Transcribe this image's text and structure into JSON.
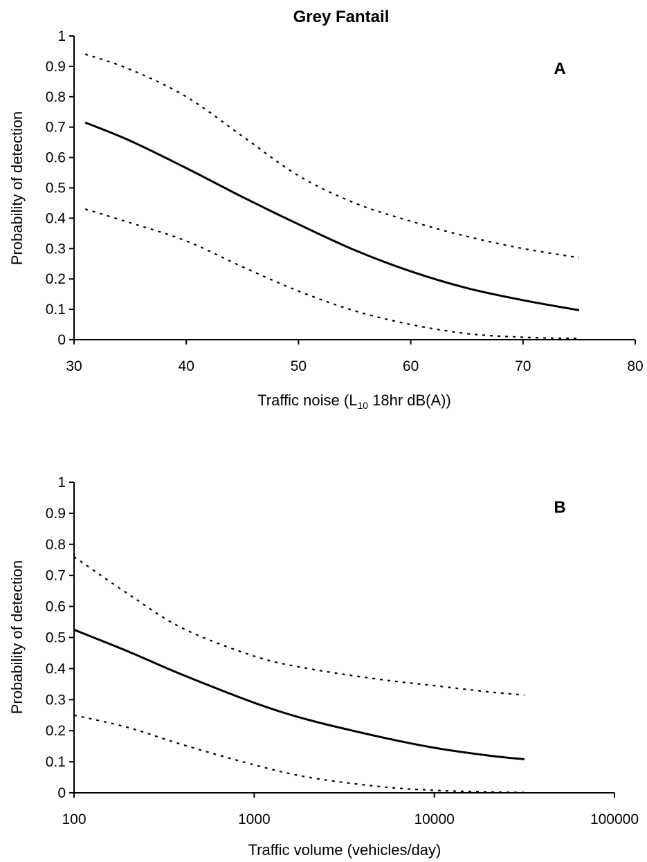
{
  "title": "Grey Fantail",
  "chart_data": [
    {
      "type": "line",
      "panel": "A",
      "xlabel_prefix": "Traffic noise (L",
      "xlabel_sub": "10",
      "xlabel_suffix": " 18hr dB(A))",
      "ylabel": "Probability of detection",
      "xlim": [
        30,
        80
      ],
      "ylim": [
        0,
        1
      ],
      "x_ticks": [
        30,
        40,
        50,
        60,
        70,
        80
      ],
      "y_ticks": [
        "0",
        "0.1",
        "0.2",
        "0.3",
        "0.4",
        "0.5",
        "0.6",
        "0.7",
        "0.8",
        "0.9",
        "1"
      ],
      "x_scale": "linear",
      "series": [
        {
          "style": "solid",
          "x": [
            31,
            35,
            40,
            45,
            50,
            55,
            60,
            65,
            70,
            75
          ],
          "y": [
            0.715,
            0.655,
            0.565,
            0.47,
            0.38,
            0.295,
            0.225,
            0.17,
            0.13,
            0.097
          ]
        },
        {
          "style": "dotted",
          "x": [
            31,
            35,
            40,
            45,
            50,
            55,
            60,
            65,
            70,
            75
          ],
          "y": [
            0.94,
            0.89,
            0.8,
            0.67,
            0.54,
            0.45,
            0.39,
            0.34,
            0.3,
            0.27
          ]
        },
        {
          "style": "dotted",
          "x": [
            31,
            35,
            40,
            45,
            50,
            55,
            60,
            65,
            70,
            75
          ],
          "y": [
            0.43,
            0.385,
            0.325,
            0.24,
            0.16,
            0.095,
            0.05,
            0.02,
            0.008,
            0.004
          ]
        }
      ]
    },
    {
      "type": "line",
      "panel": "B",
      "xlabel": "Traffic volume (vehicles/day)",
      "ylabel": "Probability of detection",
      "xlim": [
        100,
        100000
      ],
      "ylim": [
        0,
        1
      ],
      "x_ticks": [
        100,
        1000,
        10000,
        100000
      ],
      "y_ticks": [
        "0",
        "0.1",
        "0.2",
        "0.3",
        "0.4",
        "0.5",
        "0.6",
        "0.7",
        "0.8",
        "0.9",
        "1"
      ],
      "x_scale": "log",
      "series": [
        {
          "style": "solid",
          "x": [
            100,
            200,
            400,
            1000,
            2000,
            5000,
            10000,
            20000,
            31600
          ],
          "y": [
            0.525,
            0.455,
            0.38,
            0.29,
            0.235,
            0.18,
            0.145,
            0.12,
            0.108
          ]
        },
        {
          "style": "dotted",
          "x": [
            100,
            200,
            400,
            1000,
            2000,
            5000,
            10000,
            20000,
            31600
          ],
          "y": [
            0.76,
            0.64,
            0.53,
            0.44,
            0.4,
            0.365,
            0.345,
            0.325,
            0.315
          ]
        },
        {
          "style": "dotted",
          "x": [
            100,
            200,
            400,
            1000,
            2000,
            5000,
            10000,
            20000,
            31600
          ],
          "y": [
            0.25,
            0.21,
            0.155,
            0.09,
            0.05,
            0.02,
            0.008,
            0.003,
            0.001
          ]
        }
      ]
    }
  ]
}
